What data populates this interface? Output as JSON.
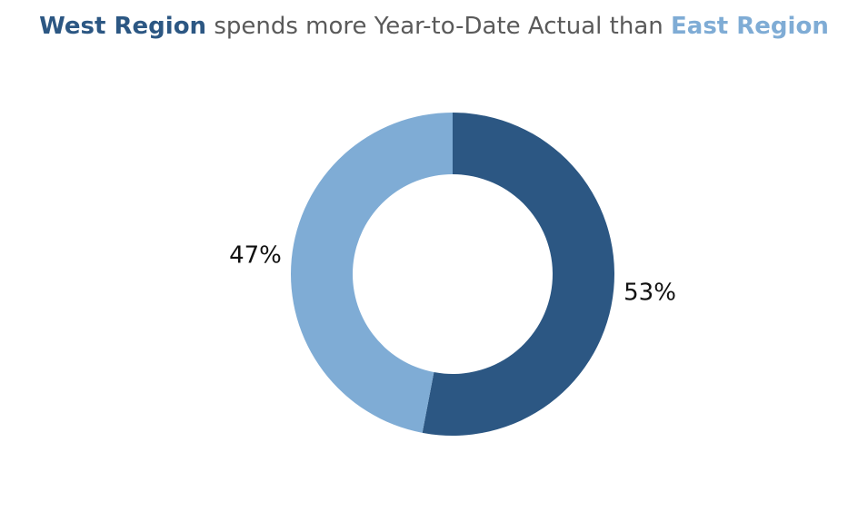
{
  "chart_data": {
    "type": "pie",
    "style": "donut",
    "title": {
      "highlight_a": "West Region",
      "middle": " spends more Year-to-Date Actual than ",
      "highlight_b": "East Region"
    },
    "slices": [
      {
        "value": 53,
        "label": "53%",
        "color": "#2c5783"
      },
      {
        "value": 47,
        "label": "47%",
        "color": "#7facd5"
      }
    ]
  }
}
